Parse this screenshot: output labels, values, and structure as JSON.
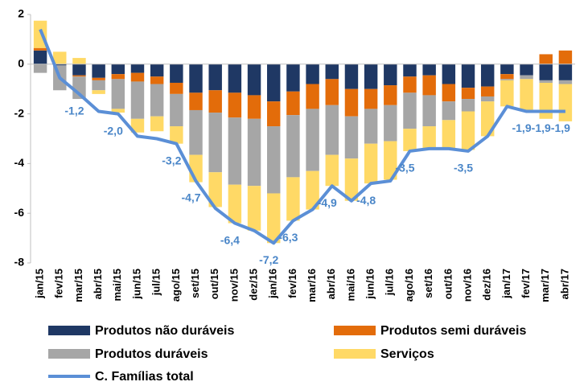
{
  "chart_data": {
    "type": "bar",
    "categories": [
      "jan/15",
      "fev/15",
      "mar/15",
      "abr/15",
      "mai/15",
      "jun/15",
      "jul/15",
      "ago/15",
      "set/15",
      "out/15",
      "nov/15",
      "dez/15",
      "jan/16",
      "fev/16",
      "mar/16",
      "abr/16",
      "mai/16",
      "jun/16",
      "jul/16",
      "ago/16",
      "set/16",
      "out/16",
      "nov/16",
      "dez/16",
      "jan/17",
      "fev/17",
      "mar/17",
      "abr/17"
    ],
    "series": [
      {
        "name": "Produtos não duráveis",
        "color": "#1f3864",
        "values": [
          0.55,
          -0.05,
          -0.45,
          -0.55,
          -0.4,
          -0.35,
          -0.5,
          -0.75,
          -1.15,
          -1.05,
          -1.15,
          -1.25,
          -1.5,
          -1.1,
          -0.8,
          -0.6,
          -1.0,
          -1.0,
          -0.85,
          -0.5,
          -0.45,
          -0.8,
          -0.95,
          -0.9,
          -0.4,
          -0.45,
          -0.65,
          -0.65
        ]
      },
      {
        "name": "Produtos semi duráveis",
        "color": "#e36c0a",
        "values": [
          0.1,
          0,
          -0.05,
          -0.1,
          -0.2,
          -0.35,
          -0.3,
          -0.45,
          -0.7,
          -0.9,
          -1.0,
          -0.95,
          -1.0,
          -0.95,
          -1.0,
          -1.05,
          -1.1,
          -0.8,
          -0.8,
          -0.65,
          -0.8,
          -0.7,
          -0.45,
          -0.4,
          -0.2,
          0,
          0.4,
          0.55
        ]
      },
      {
        "name": "Produtos duráveis",
        "color": "#a6a6a6",
        "values": [
          -0.35,
          -1.0,
          -0.9,
          -0.4,
          -1.2,
          -1.5,
          -1.3,
          -1.3,
          -1.8,
          -2.4,
          -2.7,
          -2.7,
          -2.7,
          -2.5,
          -2.5,
          -2.0,
          -1.7,
          -1.4,
          -1.45,
          -1.45,
          -1.25,
          -0.75,
          -0.5,
          -0.2,
          -0.05,
          -0.15,
          -0.1,
          -0.15
        ]
      },
      {
        "name": "Serviços",
        "color": "#ffd966",
        "values": [
          1.1,
          0.5,
          0.25,
          -0.15,
          -0.15,
          -0.55,
          -0.6,
          -0.7,
          -1.1,
          -1.4,
          -1.55,
          -1.8,
          -2.0,
          -1.75,
          -1.55,
          -1.25,
          -1.7,
          -1.6,
          -1.55,
          -0.9,
          -0.9,
          -1.15,
          -1.55,
          -1.4,
          -1.05,
          -1.3,
          -1.45,
          -1.5
        ]
      },
      {
        "name": "C. Famílias total",
        "color": "#5b8fd6",
        "type": "line",
        "values": [
          1.4,
          -0.55,
          -1.2,
          -1.9,
          -2.0,
          -2.9,
          -3.0,
          -3.2,
          -4.7,
          -5.8,
          -6.4,
          -6.7,
          -7.2,
          -6.3,
          -5.85,
          -4.9,
          -5.5,
          -4.8,
          -4.7,
          -3.5,
          -3.4,
          -3.4,
          -3.5,
          -2.9,
          -1.7,
          -1.9,
          -1.9,
          -1.9
        ],
        "value_labels": [
          null,
          null,
          "-1,2",
          null,
          "-2,0",
          null,
          null,
          "-3,2",
          "-4,7",
          null,
          "-6,4",
          null,
          "-7,2",
          "-6,3",
          null,
          "-4,9",
          null,
          "-4,8",
          null,
          "-3,5",
          null,
          null,
          "-3,5",
          null,
          null,
          "-1,9",
          "-1,9",
          "-1,9"
        ]
      }
    ],
    "ylim": [
      -8,
      2
    ],
    "yticks": [
      -8,
      -6,
      -4,
      -2,
      0,
      2
    ],
    "grid": false,
    "legend": "bottom"
  }
}
